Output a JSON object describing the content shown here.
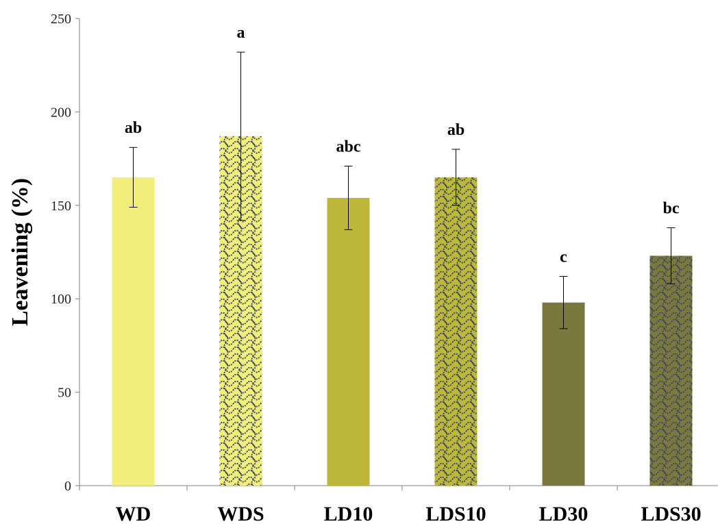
{
  "chart_data": {
    "type": "bar",
    "ylabel": "Leavening (%)",
    "xlabel": "",
    "ylim": [
      0,
      250
    ],
    "yticks": [
      0,
      50,
      100,
      150,
      200,
      250
    ],
    "grid": false,
    "legend": "none",
    "categories": [
      "WD",
      "WDS",
      "LD10",
      "LDS10",
      "LD30",
      "LDS30"
    ],
    "values": [
      165,
      187,
      154,
      165,
      98,
      123
    ],
    "errors": [
      16,
      45,
      17,
      15,
      14,
      15
    ],
    "significance_letters": [
      "ab",
      "a",
      "abc",
      "ab",
      "c",
      "bc"
    ],
    "fill_colors": [
      "#f2ee7b",
      "#f2ee7b",
      "#bdb73c",
      "#bdb73c",
      "#7a773f",
      "#7a773f"
    ],
    "patterned": [
      false,
      true,
      false,
      true,
      false,
      true
    ],
    "pattern_color": "#3b4a5a"
  }
}
